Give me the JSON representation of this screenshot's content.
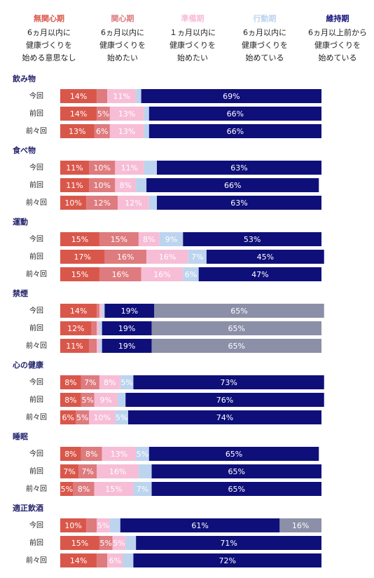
{
  "xlim": [
    0,
    100
  ],
  "legend": [
    {
      "name": "無関心期",
      "description": "6ヵ月以内に\n健康づくりを\n始める意思なし",
      "color": "#d9574a"
    },
    {
      "name": "関心期",
      "description": "6ヵ月以内に\n健康づくりを\n始めたい",
      "color": "#de7b7e"
    },
    {
      "name": "準備期",
      "description": "１ヵ月以内に\n健康づくりを\n始めたい",
      "color": "#f7bdd6"
    },
    {
      "name": "行動期",
      "description": "6ヵ月以内に\n健康づくりを\n始めている",
      "color": "#bcd4ee"
    },
    {
      "name": "維持期",
      "description": "6ヵ月以上前から\n健康づくりを\n始めている",
      "color": "#0f0f7a"
    }
  ],
  "other_color": "#8b8fa8",
  "chart_data": [
    {
      "type": "bar",
      "title": "飲み物",
      "categories": [
        "今回",
        "前回",
        "前々回"
      ],
      "series": [
        {
          "values": [
            14,
            14,
            13
          ],
          "value_labels": [
            "14%",
            "14%",
            "13%"
          ]
        },
        {
          "values": [
            4,
            5,
            6
          ],
          "value_labels": [
            null,
            "5%",
            "6%"
          ]
        },
        {
          "values": [
            11,
            13,
            13
          ],
          "value_labels": [
            "11%",
            "13%",
            "13%"
          ]
        },
        {
          "values": [
            2,
            2,
            2
          ],
          "value_labels": [
            null,
            null,
            null
          ]
        },
        {
          "values": [
            69,
            66,
            66
          ],
          "value_labels": [
            "69%",
            "66%",
            "66%"
          ]
        }
      ]
    },
    {
      "type": "bar",
      "title": "食べ物",
      "categories": [
        "今回",
        "前回",
        "前々回"
      ],
      "series": [
        {
          "values": [
            11,
            11,
            10
          ],
          "value_labels": [
            "11%",
            "11%",
            "10%"
          ]
        },
        {
          "values": [
            10,
            10,
            12
          ],
          "value_labels": [
            "10%",
            "10%",
            "12%"
          ]
        },
        {
          "values": [
            11,
            8,
            12
          ],
          "value_labels": [
            "11%",
            "8%",
            "12%"
          ]
        },
        {
          "values": [
            5,
            4,
            3
          ],
          "value_labels": [
            null,
            null,
            null
          ]
        },
        {
          "values": [
            63,
            66,
            63
          ],
          "value_labels": [
            "63%",
            "66%",
            "63%"
          ]
        }
      ]
    },
    {
      "type": "bar",
      "title": "運動",
      "categories": [
        "今回",
        "前回",
        "前々回"
      ],
      "series": [
        {
          "values": [
            15,
            17,
            15
          ],
          "value_labels": [
            "15%",
            "17%",
            "15%"
          ]
        },
        {
          "values": [
            15,
            16,
            16
          ],
          "value_labels": [
            "15%",
            "16%",
            "16%"
          ]
        },
        {
          "values": [
            8,
            16,
            16
          ],
          "value_labels": [
            "8%",
            "16%",
            "16%"
          ]
        },
        {
          "values": [
            9,
            7,
            6
          ],
          "value_labels": [
            "9%",
            "7%",
            "6%"
          ]
        },
        {
          "values": [
            53,
            45,
            47
          ],
          "value_labels": [
            "53%",
            "45%",
            "47%"
          ]
        }
      ]
    },
    {
      "type": "bar",
      "title": "禁煙",
      "categories": [
        "今回",
        "前回",
        "前々回"
      ],
      "series": [
        {
          "values": [
            14,
            12,
            11
          ],
          "value_labels": [
            "14%",
            "12%",
            "11%"
          ]
        },
        {
          "values": [
            1,
            2,
            3
          ],
          "value_labels": [
            null,
            null,
            null
          ]
        },
        {
          "values": [
            1,
            1,
            1
          ],
          "value_labels": [
            null,
            null,
            null
          ]
        },
        {
          "values": [
            1,
            1,
            1
          ],
          "value_labels": [
            null,
            null,
            null
          ]
        },
        {
          "values": [
            19,
            19,
            19
          ],
          "value_labels": [
            "19%",
            "19%",
            "19%"
          ]
        },
        {
          "values": [
            65,
            65,
            65
          ],
          "value_labels": [
            "65%",
            "65%",
            "65%"
          ]
        }
      ]
    },
    {
      "type": "bar",
      "title": "心の健康",
      "categories": [
        "今回",
        "前回",
        "前々回"
      ],
      "series": [
        {
          "values": [
            8,
            8,
            6
          ],
          "value_labels": [
            "8%",
            "8%",
            "6%"
          ]
        },
        {
          "values": [
            7,
            5,
            5
          ],
          "value_labels": [
            "7%",
            "5%",
            "5%"
          ]
        },
        {
          "values": [
            8,
            9,
            10
          ],
          "value_labels": [
            "8%",
            "9%",
            "10%"
          ]
        },
        {
          "values": [
            5,
            3,
            5
          ],
          "value_labels": [
            "5%",
            null,
            "5%"
          ]
        },
        {
          "values": [
            73,
            76,
            74
          ],
          "value_labels": [
            "73%",
            "76%",
            "74%"
          ]
        }
      ]
    },
    {
      "type": "bar",
      "title": "睡眠",
      "categories": [
        "今回",
        "前回",
        "前々回"
      ],
      "series": [
        {
          "values": [
            8,
            7,
            5
          ],
          "value_labels": [
            "8%",
            "7%",
            "5%"
          ]
        },
        {
          "values": [
            8,
            7,
            8
          ],
          "value_labels": [
            "8%",
            "7%",
            "8%"
          ]
        },
        {
          "values": [
            13,
            16,
            15
          ],
          "value_labels": [
            "13%",
            "16%",
            "15%"
          ]
        },
        {
          "values": [
            5,
            5,
            7
          ],
          "value_labels": [
            "5%",
            null,
            "7%"
          ]
        },
        {
          "values": [
            65,
            65,
            65
          ],
          "value_labels": [
            "65%",
            "65%",
            "65%"
          ]
        }
      ]
    },
    {
      "type": "bar",
      "title": "適正飲酒",
      "categories": [
        "今回",
        "前回",
        "前々回"
      ],
      "series": [
        {
          "values": [
            10,
            15,
            14
          ],
          "value_labels": [
            "10%",
            "15%",
            "14%"
          ]
        },
        {
          "values": [
            4,
            5,
            4
          ],
          "value_labels": [
            null,
            "5%",
            null
          ]
        },
        {
          "values": [
            5,
            5,
            6
          ],
          "value_labels": [
            "5%",
            "5%",
            "6%"
          ]
        },
        {
          "values": [
            4,
            4,
            4
          ],
          "value_labels": [
            null,
            null,
            null
          ]
        },
        {
          "values": [
            61,
            71,
            72
          ],
          "value_labels": [
            "61%",
            "71%",
            "72%"
          ]
        },
        {
          "values": [
            16,
            null,
            null
          ],
          "value_labels": [
            "16%",
            null,
            null
          ]
        }
      ]
    }
  ]
}
